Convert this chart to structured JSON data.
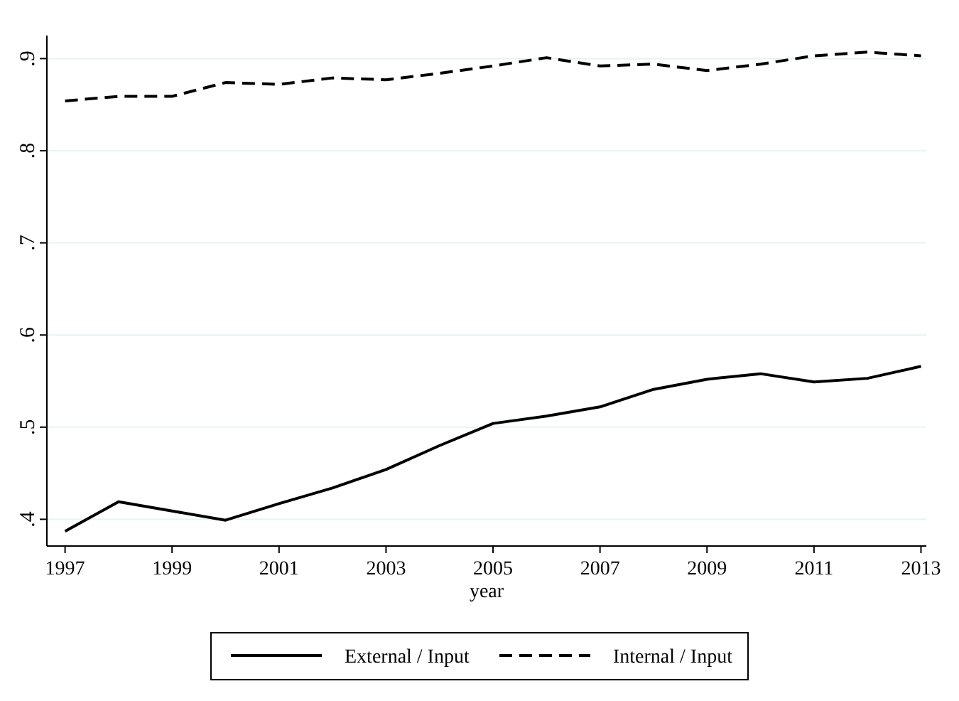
{
  "chart_data": {
    "type": "line",
    "xlabel": "year",
    "x": [
      1997,
      1998,
      1999,
      2000,
      2001,
      2002,
      2003,
      2004,
      2005,
      2006,
      2007,
      2008,
      2009,
      2010,
      2011,
      2012,
      2013
    ],
    "series": [
      {
        "name": "External / Input",
        "color": "#000000",
        "line_style": "solid",
        "values": [
          0.387,
          0.419,
          0.409,
          0.399,
          0.417,
          0.434,
          0.454,
          0.48,
          0.504,
          0.512,
          0.522,
          0.541,
          0.552,
          0.558,
          0.549,
          0.553,
          0.566
        ]
      },
      {
        "name": "Internal / Input",
        "color": "#000000",
        "line_style": "dashed",
        "values": [
          0.854,
          0.859,
          0.859,
          0.874,
          0.872,
          0.879,
          0.877,
          0.884,
          0.892,
          0.901,
          0.892,
          0.894,
          0.887,
          0.894,
          0.903,
          0.907,
          0.903
        ]
      }
    ],
    "xlim": [
      1996.66,
      2013.1
    ],
    "xticks": [
      1997,
      1999,
      2001,
      2003,
      2005,
      2007,
      2009,
      2011,
      2013
    ],
    "ylim": [
      0.371,
      0.925
    ],
    "yticks": [
      {
        "value": 0.4,
        "label": ".4"
      },
      {
        "value": 0.5,
        "label": ".5"
      },
      {
        "value": 0.6,
        "label": ".6"
      },
      {
        "value": 0.7,
        "label": ".7"
      },
      {
        "value": 0.8,
        "label": ".8"
      },
      {
        "value": 0.9,
        "label": ".9"
      }
    ],
    "grid": "y",
    "legend": "bottom",
    "marker": "none"
  }
}
